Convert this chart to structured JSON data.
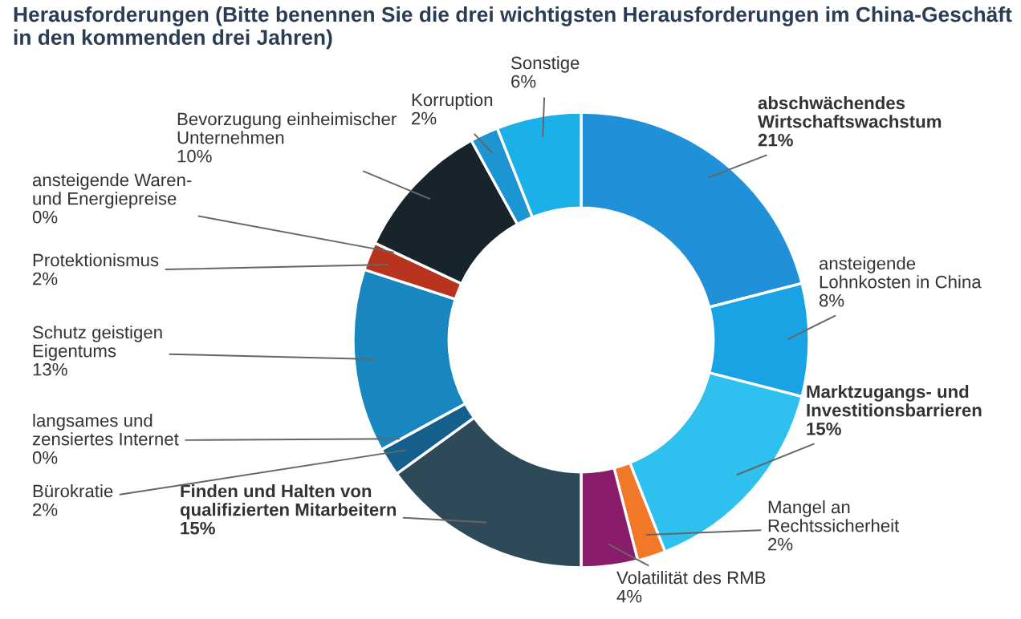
{
  "chart_data": {
    "type": "donut",
    "title": "Herausforderungen (Bitte benennen Sie die drei wichtigsten Herausforderungen im China-Geschäft\nin den kommenden drei Jahren)",
    "categories": [
      "abschwächendes\nWirtschaftswachstum",
      "ansteigende\nLohnkosten in China",
      "Marktzugangs- und\nInvestitionsbarrieren",
      "Mangel an\nRechtssicherheit",
      "Volatilität des RMB",
      "Finden und Halten von\nqualifizierten Mitarbeitern",
      "Bürokratie",
      "langsames und\nzensiertes Internet",
      "Schutz geistigen\nEigentums",
      "Protektionismus",
      "ansteigende Waren-\nund Energiepreise",
      "Bevorzugung einheimischer\nUnternehmen",
      "Korruption",
      "Sonstige"
    ],
    "values": [
      21,
      8,
      15,
      2,
      4,
      15,
      2,
      0,
      13,
      2,
      0,
      10,
      2,
      6
    ],
    "value_labels": [
      "21%",
      "8%",
      "15%",
      "2%",
      "4%",
      "15%",
      "2%",
      "0%",
      "13%",
      "2%",
      "0%",
      "10%",
      "2%",
      "6%"
    ],
    "colors": [
      "#2090d8",
      "#1aa3e4",
      "#2ec0ee",
      "#f07828",
      "#8a1c6c",
      "#2e4a58",
      "#155f8c",
      "#1a78b0",
      "#1887c0",
      "#b8321e",
      "#c06020",
      "#17242c",
      "#1c95d2",
      "#1bb0ea"
    ],
    "legend": false
  }
}
